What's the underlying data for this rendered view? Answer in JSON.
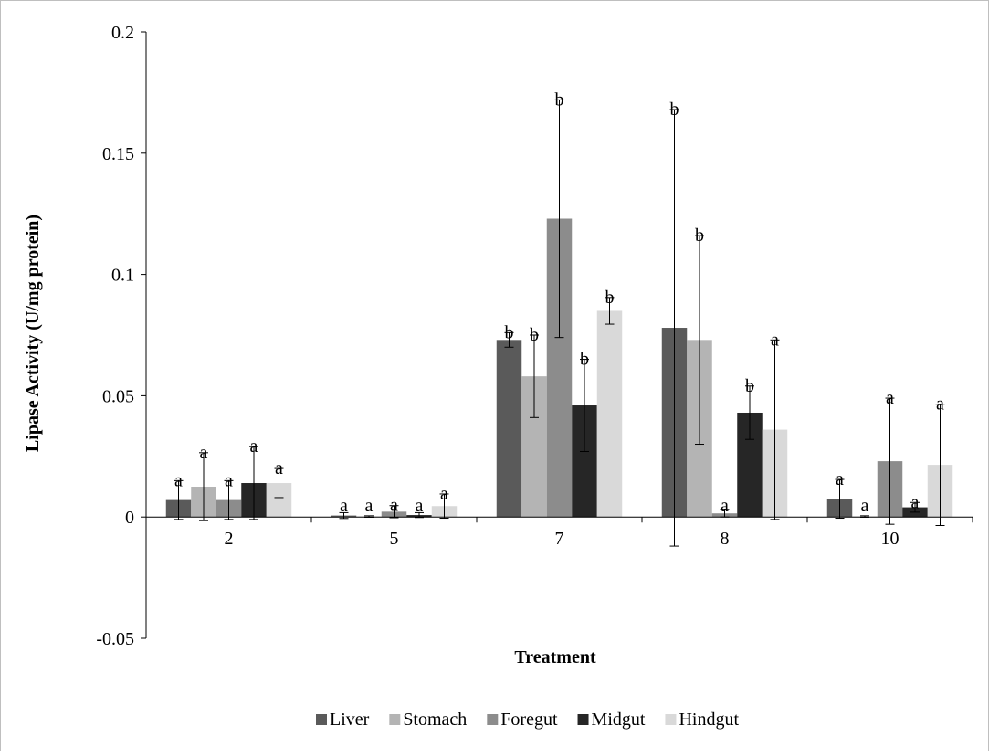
{
  "chart_data": {
    "type": "bar",
    "xlabel": "Treatment",
    "ylabel": "Lipase Activity (U/mg protein)",
    "ylim": [
      -0.05,
      0.2
    ],
    "yticks": [
      -0.05,
      0,
      0.05,
      0.1,
      0.15,
      0.2
    ],
    "ytick_labels": [
      "-0.05",
      "0",
      "0.05",
      "0.1",
      "0.15",
      "0.2"
    ],
    "categories": [
      "2",
      "5",
      "7",
      "8",
      "10"
    ],
    "grid": false,
    "legend": "bottom",
    "series": [
      {
        "name": "Liver",
        "color": "#5a5a5a",
        "values": [
          0.007,
          0.0006,
          0.073,
          0.078,
          0.0075
        ],
        "errors": [
          0.008,
          0.0012,
          0.003,
          0.09,
          0.008
        ],
        "letters": [
          "a",
          "a",
          "b",
          "b",
          "a"
        ]
      },
      {
        "name": "Stomach",
        "color": "#b4b4b4",
        "values": [
          0.0125,
          0.0002,
          0.058,
          0.073,
          0.0002
        ],
        "errors": [
          0.014,
          0.0003,
          0.017,
          0.043,
          0.0003
        ],
        "letters": [
          "a",
          "a",
          "b",
          "b",
          "a"
        ]
      },
      {
        "name": "Foregut",
        "color": "#8c8c8c",
        "values": [
          0.007,
          0.0022,
          0.123,
          0.0015,
          0.023
        ],
        "errors": [
          0.008,
          0.0025,
          0.049,
          0.0015,
          0.026
        ],
        "letters": [
          "a",
          "a",
          "b",
          "a",
          "a"
        ]
      },
      {
        "name": "Midgut",
        "color": "#262626",
        "values": [
          0.014,
          0.0008,
          0.046,
          0.043,
          0.004
        ],
        "errors": [
          0.015,
          0.001,
          0.019,
          0.011,
          0.002
        ],
        "letters": [
          "a",
          "a",
          "b",
          "b",
          "a"
        ]
      },
      {
        "name": "Hindgut",
        "color": "#d9d9d9",
        "values": [
          0.014,
          0.0045,
          0.085,
          0.036,
          0.0215
        ],
        "errors": [
          0.006,
          0.005,
          0.0055,
          0.037,
          0.025
        ],
        "letters": [
          "a",
          "a",
          "b",
          "a",
          "a"
        ]
      }
    ]
  }
}
